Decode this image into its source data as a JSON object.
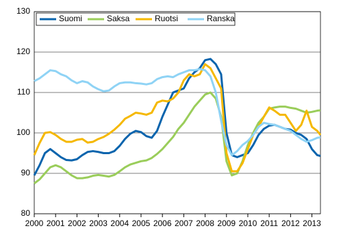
{
  "chart_data": {
    "type": "line",
    "x": [
      2000,
      2000.25,
      2000.5,
      2000.75,
      2001,
      2001.25,
      2001.5,
      2001.75,
      2002,
      2002.25,
      2002.5,
      2002.75,
      2003,
      2003.25,
      2003.5,
      2003.75,
      2004,
      2004.25,
      2004.5,
      2004.75,
      2005,
      2005.25,
      2005.5,
      2005.75,
      2006,
      2006.25,
      2006.5,
      2006.75,
      2007,
      2007.25,
      2007.5,
      2007.75,
      2008,
      2008.25,
      2008.5,
      2008.75,
      2009,
      2009.25,
      2009.5,
      2009.75,
      2010,
      2010.25,
      2010.5,
      2010.75,
      2011,
      2011.25,
      2011.5,
      2011.75,
      2012,
      2012.25,
      2012.5,
      2012.75,
      2013,
      2013.25,
      2013.4
    ],
    "series": [
      {
        "name": "Suomi",
        "color": "#0a64ad",
        "values": [
          89.5,
          92,
          95,
          96,
          95,
          94,
          93.3,
          93.2,
          93.5,
          94.5,
          95.3,
          95.5,
          95.3,
          95,
          95,
          95.5,
          96.8,
          98.5,
          99.8,
          100.5,
          100.2,
          99.2,
          98.8,
          100.5,
          104,
          107,
          110,
          110.5,
          111,
          113.5,
          115,
          116,
          118,
          118.3,
          117,
          114.5,
          100,
          94.5,
          94,
          94.5,
          95,
          97,
          99.5,
          101,
          101.8,
          102,
          101.5,
          101,
          100.8,
          100,
          99.5,
          98.5,
          96,
          94.5,
          94.3
        ]
      },
      {
        "name": "Saksa",
        "color": "#9acd5a",
        "values": [
          87.5,
          88.5,
          90,
          91.5,
          92,
          91.5,
          90.5,
          89.5,
          88.8,
          88.8,
          89,
          89.4,
          89.6,
          89.4,
          89.2,
          89.6,
          90.5,
          91.5,
          92.2,
          92.6,
          93,
          93.2,
          93.8,
          94.8,
          96,
          97.5,
          99,
          101,
          102.5,
          104.5,
          106.5,
          108,
          109.5,
          110,
          108.5,
          104,
          93,
          89.5,
          90,
          93,
          97,
          100,
          102.5,
          104,
          106,
          106.3,
          106.5,
          106.5,
          106.2,
          106,
          105.5,
          105,
          105.2,
          105.5,
          105.6
        ]
      },
      {
        "name": "Ruotsi",
        "color": "#f5b800",
        "values": [
          94.5,
          97.5,
          100,
          100.2,
          99.5,
          98.5,
          97.8,
          97.8,
          98.3,
          98.5,
          97.6,
          97.8,
          98.5,
          99,
          99.8,
          100.8,
          102,
          103.5,
          104.2,
          105,
          104.8,
          104.5,
          105,
          107.5,
          108,
          107.8,
          108.5,
          110,
          113,
          114.5,
          114,
          114.5,
          117,
          116,
          113.5,
          111,
          95,
          90.5,
          90.5,
          92.5,
          96,
          99.5,
          101.5,
          104,
          106.3,
          105.5,
          104.5,
          104.5,
          102.5,
          100.5,
          102,
          105.5,
          101.5,
          100.5,
          99.5
        ]
      },
      {
        "name": "Ranska",
        "color": "#8fd3f5",
        "values": [
          112.8,
          113.5,
          114.5,
          115.5,
          115.3,
          114.5,
          114,
          113,
          112.3,
          112.8,
          112.5,
          111.5,
          110.8,
          110.3,
          110.5,
          111.5,
          112.3,
          112.5,
          112.5,
          112.3,
          112.2,
          112,
          112.3,
          113.3,
          113.8,
          114,
          113.8,
          114.5,
          115,
          115.5,
          115.5,
          115.8,
          115.5,
          114,
          110,
          103,
          97,
          94.5,
          95.5,
          97,
          98,
          99.5,
          101.5,
          102.5,
          102.2,
          102,
          101.5,
          101,
          100.5,
          99.5,
          98.5,
          97.8,
          98.2,
          98.8,
          98.9
        ]
      }
    ],
    "xlim": [
      2000,
      2013.4
    ],
    "xticks": [
      2000,
      2001,
      2002,
      2003,
      2004,
      2005,
      2006,
      2007,
      2008,
      2009,
      2010,
      2011,
      2012,
      2013
    ],
    "ylim": [
      80,
      130
    ],
    "yticks": [
      80,
      90,
      100,
      110,
      120,
      130
    ],
    "grid": true
  }
}
